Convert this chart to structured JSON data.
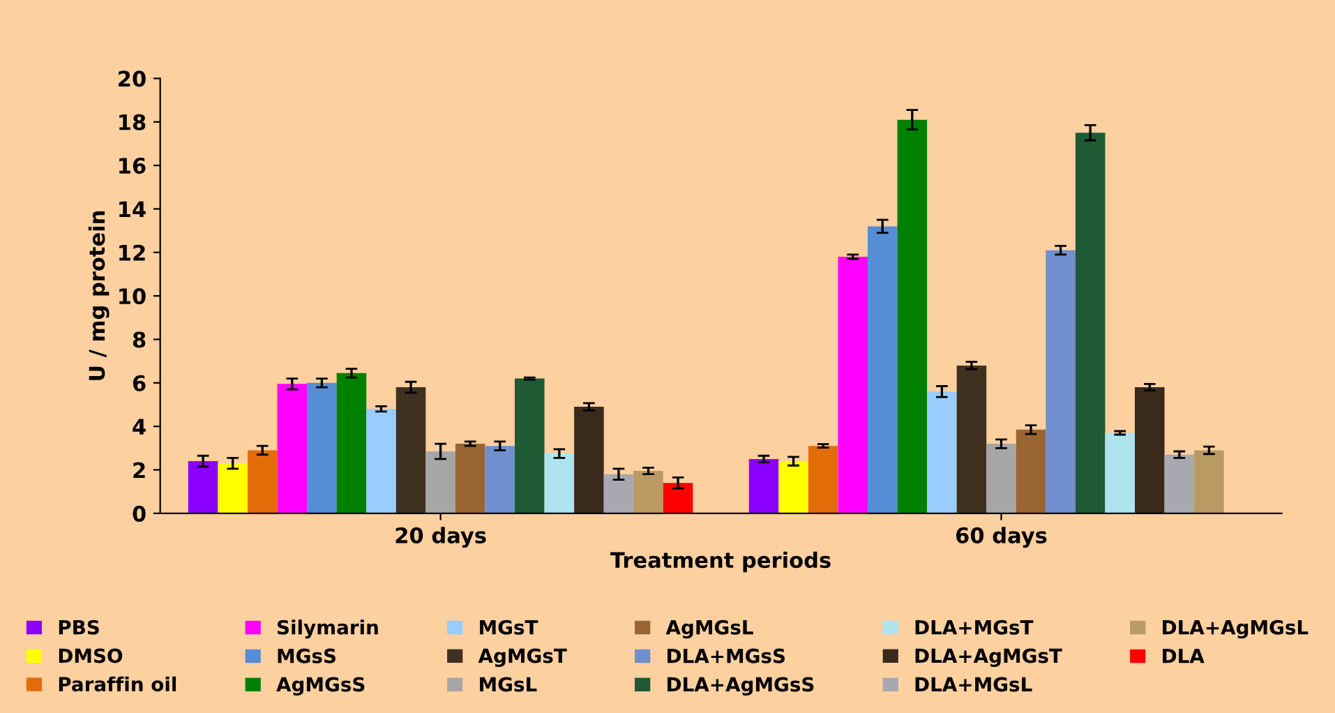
{
  "chart_data": {
    "type": "bar",
    "xlabel": "Treatment periods",
    "ylabel": "U / mg protein",
    "categories": [
      "20 days",
      "60 days"
    ],
    "ylim": [
      0,
      20
    ],
    "yticks": [
      0,
      2,
      4,
      6,
      8,
      10,
      12,
      14,
      16,
      18,
      20
    ],
    "grid": false,
    "legend": "bottom",
    "series": [
      {
        "name": "PBS",
        "color": "#8b00ff",
        "values": [
          2.4,
          2.5
        ],
        "errors": [
          0.25,
          0.15
        ]
      },
      {
        "name": "DMSO",
        "color": "#ffff00",
        "values": [
          2.3,
          2.4
        ],
        "errors": [
          0.25,
          0.2
        ]
      },
      {
        "name": "Paraffin oil",
        "color": "#e36c09",
        "values": [
          2.9,
          3.1
        ],
        "errors": [
          0.2,
          0.08
        ]
      },
      {
        "name": "Silymarin",
        "color": "#ff00ff",
        "values": [
          5.95,
          11.8
        ],
        "errors": [
          0.25,
          0.1
        ]
      },
      {
        "name": "MGsS",
        "color": "#558ed5",
        "values": [
          6.0,
          13.2
        ],
        "errors": [
          0.2,
          0.3
        ]
      },
      {
        "name": "AgMGsS",
        "color": "#008000",
        "values": [
          6.45,
          18.1
        ],
        "errors": [
          0.2,
          0.45
        ]
      },
      {
        "name": "MGsT",
        "color": "#99ccff",
        "values": [
          4.8,
          5.6
        ],
        "errors": [
          0.12,
          0.25
        ]
      },
      {
        "name": "AgMGsT",
        "color": "#403020",
        "values": [
          5.8,
          6.8
        ],
        "errors": [
          0.25,
          0.17
        ]
      },
      {
        "name": "MGsL",
        "color": "#a6a6a6",
        "values": [
          2.85,
          3.2
        ],
        "errors": [
          0.35,
          0.2
        ]
      },
      {
        "name": "AgMGsL",
        "color": "#996633",
        "values": [
          3.2,
          3.85
        ],
        "errors": [
          0.1,
          0.2
        ]
      },
      {
        "name": "DLA+MGsS",
        "color": "#6f8fcf",
        "values": [
          3.1,
          12.1
        ],
        "errors": [
          0.2,
          0.2
        ]
      },
      {
        "name": "DLA+AgMGsS",
        "color": "#1e5a34",
        "values": [
          6.2,
          17.5
        ],
        "errors": [
          0.05,
          0.35
        ]
      },
      {
        "name": "DLA+MGsT",
        "color": "#aee4ee",
        "values": [
          2.75,
          3.7
        ],
        "errors": [
          0.2,
          0.08
        ]
      },
      {
        "name": "DLA+AgMGsT",
        "color": "#3a2a1c",
        "values": [
          4.9,
          5.8
        ],
        "errors": [
          0.17,
          0.15
        ]
      },
      {
        "name": "DLA+MGsL",
        "color": "#a8a8b0",
        "values": [
          1.8,
          2.7
        ],
        "errors": [
          0.25,
          0.15
        ]
      },
      {
        "name": "DLA+AgMGsL",
        "color": "#b89a62",
        "values": [
          1.95,
          2.9
        ],
        "errors": [
          0.15,
          0.17
        ]
      },
      {
        "name": "DLA",
        "color": "#ff0000",
        "values": [
          1.4,
          null
        ],
        "errors": [
          0.25,
          null
        ]
      }
    ]
  }
}
